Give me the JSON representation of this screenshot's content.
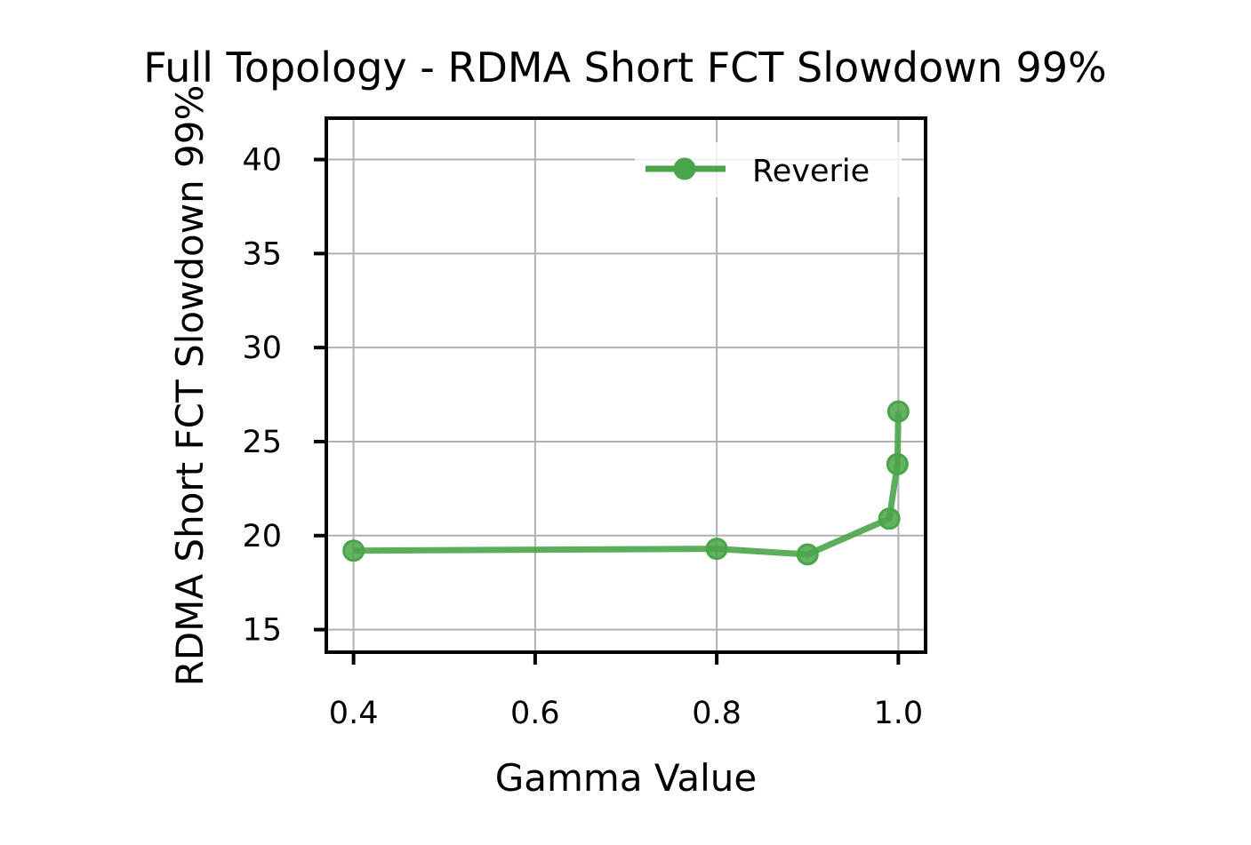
{
  "chart_data": {
    "type": "line",
    "title": "Full Topology - RDMA Short FCT Slowdown 99%",
    "xlabel": "Gamma Value",
    "ylabel": "RDMA Short FCT Slowdown 99%",
    "xlim": [
      0.37,
      1.03
    ],
    "ylim": [
      13.8,
      42.2
    ],
    "xticks": [
      0.4,
      0.6,
      0.8,
      1.0
    ],
    "xtick_labels": [
      "0.4",
      "0.6",
      "0.8",
      "1.0"
    ],
    "yticks": [
      15,
      20,
      25,
      30,
      35,
      40
    ],
    "ytick_labels": [
      "15",
      "20",
      "25",
      "30",
      "35",
      "40"
    ],
    "grid": true,
    "legend_position": "top-right",
    "series": [
      {
        "name": "Reverie",
        "color": "#4aa54a",
        "marker": "circle",
        "x": [
          0.4,
          0.8,
          0.9,
          0.99,
          0.999,
          1.0
        ],
        "y": [
          19.2,
          19.3,
          19.0,
          20.9,
          23.8,
          26.6
        ]
      }
    ]
  }
}
